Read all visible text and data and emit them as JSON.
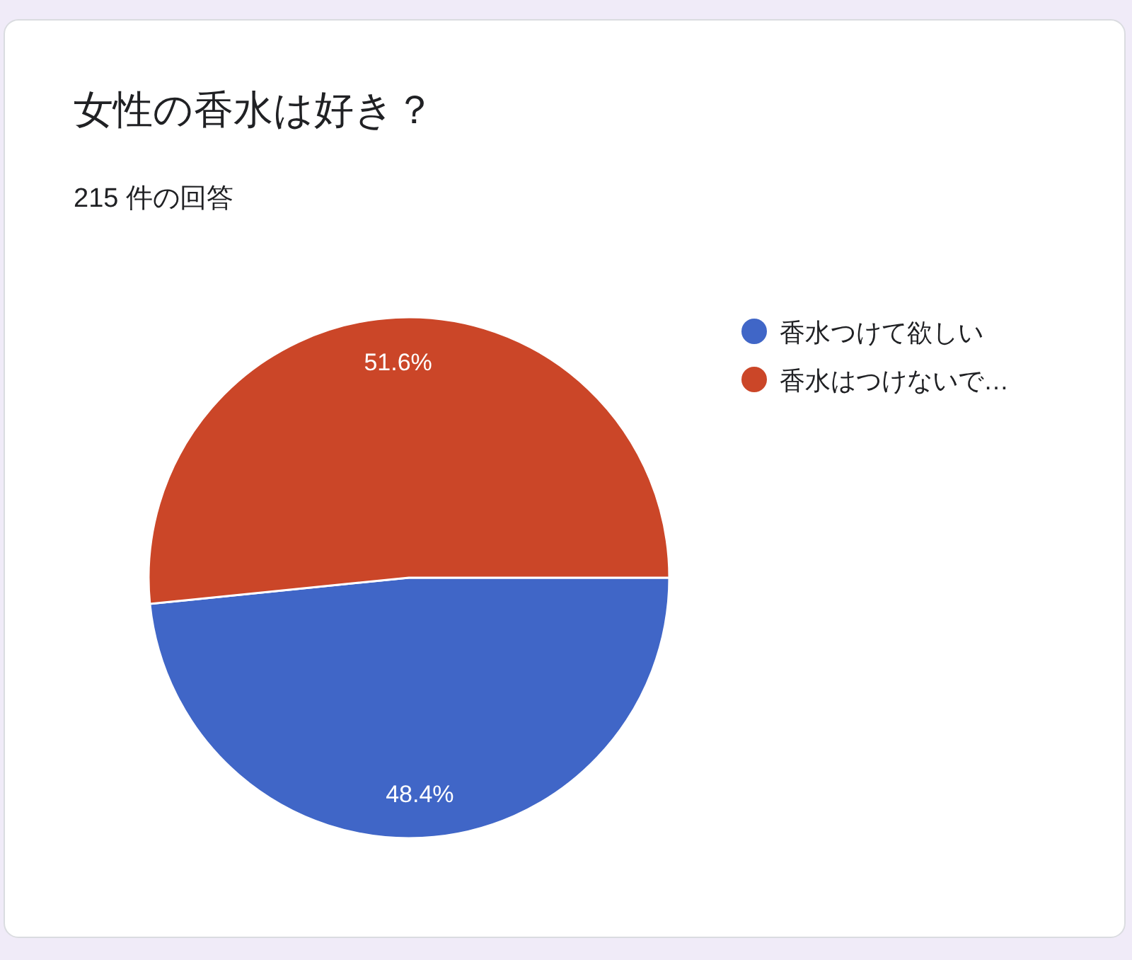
{
  "chart_data": {
    "type": "pie",
    "title": "女性の香水は好き？",
    "subtitle": "215 件の回答",
    "categories": [
      "香水つけて欲しい",
      "香水はつけないで…"
    ],
    "values": [
      48.4,
      51.6
    ],
    "colors": [
      "#4066c7",
      "#cb4628"
    ],
    "value_labels": [
      "48.4%",
      "51.6%"
    ],
    "legend": "right"
  }
}
